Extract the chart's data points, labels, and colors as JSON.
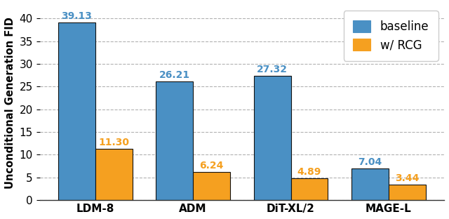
{
  "categories": [
    "LDM-8",
    "ADM",
    "DiT-XL/2",
    "MAGE-L"
  ],
  "baseline_values": [
    39.13,
    26.21,
    27.32,
    7.04
  ],
  "rcg_values": [
    11.3,
    6.24,
    4.89,
    3.44
  ],
  "baseline_color": "#4a90c4",
  "rcg_color": "#f5a020",
  "baseline_label": "baseline",
  "rcg_label": "w/ RCG",
  "ylabel": "Unconditional Generation FID",
  "ylim": [
    0,
    43
  ],
  "yticks": [
    0,
    5,
    10,
    15,
    20,
    25,
    30,
    35,
    40
  ],
  "bar_width": 0.38,
  "group_positions": [
    0.42,
    1.42,
    2.42,
    3.42
  ],
  "label_fontsize": 10.5,
  "tick_fontsize": 11,
  "value_fontsize": 10,
  "legend_fontsize": 12,
  "background_color": "#ffffff",
  "edge_color": "#111111"
}
